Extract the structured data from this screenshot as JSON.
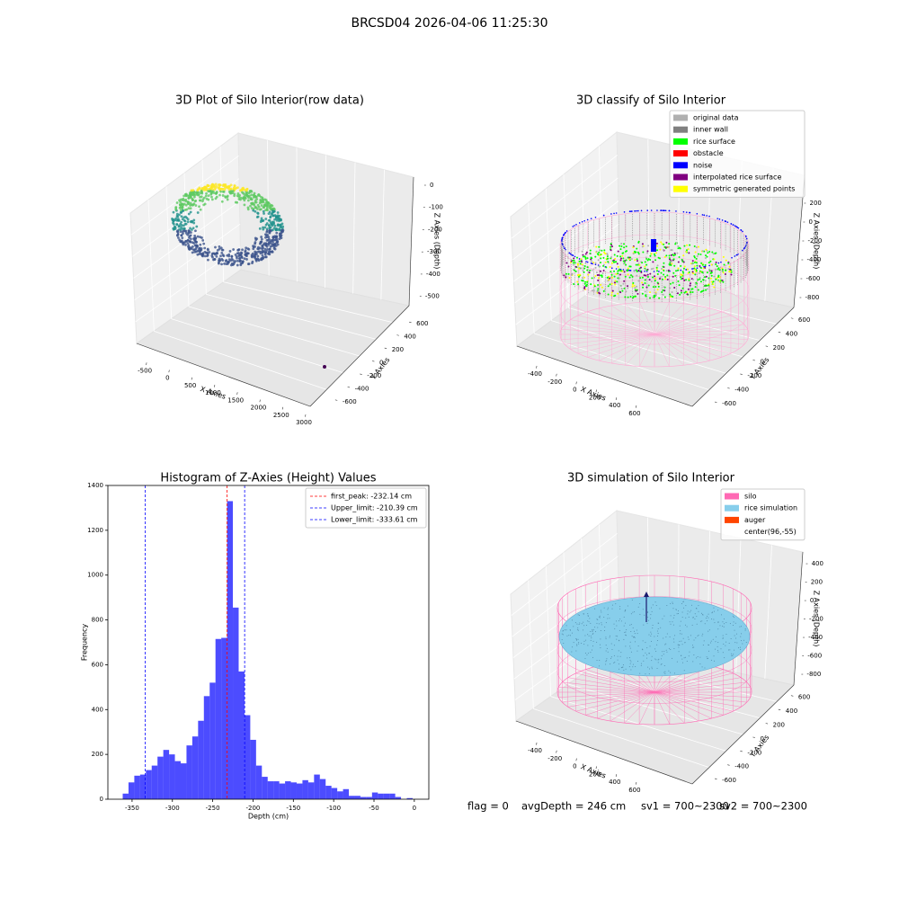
{
  "suptitle": "BRCSD04 2026-04-06 11:25:30",
  "chart_data": [
    {
      "type": "scatter3d",
      "title": "3D Plot of Silo Interior(row data)",
      "xlabel": "X Axies",
      "ylabel": "Y Axies",
      "zlabel": "Z Axies (Depth)",
      "xlim": [
        -700,
        3150
      ],
      "xticks": [
        -500,
        0,
        500,
        1000,
        1500,
        2000,
        2500,
        3000
      ],
      "ylim": [
        -700,
        700
      ],
      "yticks": [
        -600,
        -400,
        -200,
        0,
        200,
        400,
        600
      ],
      "zlim": [
        -550,
        30
      ],
      "zticks": [
        0,
        -100,
        -200,
        -300,
        -400,
        -500
      ]
    },
    {
      "type": "scatter3d",
      "title": "3D classify of Silo Interior",
      "xlabel": "X Axies",
      "ylabel": "Y Axies",
      "zlabel": "Z Axies (Depth)",
      "xlim": [
        -500,
        700
      ],
      "xticks": [
        -400,
        -200,
        0,
        200,
        400,
        600
      ],
      "ylim": [
        -700,
        700
      ],
      "yticks": [
        -600,
        -400,
        -200,
        0,
        200,
        400,
        600
      ],
      "zlim": [
        -900,
        300
      ],
      "zticks": [
        200,
        0,
        -200,
        -400,
        -600,
        -800
      ],
      "legend": [
        {
          "name": "original data",
          "color": "#b0b0b0"
        },
        {
          "name": "inner wall",
          "color": "#808080"
        },
        {
          "name": "rice surface",
          "color": "#00ff00"
        },
        {
          "name": "obstacle",
          "color": "#ff0000"
        },
        {
          "name": "noise",
          "color": "#0000ff"
        },
        {
          "name": "interpolated rice surface",
          "color": "#800080"
        },
        {
          "name": "symmetric generated points",
          "color": "#ffff00"
        }
      ]
    },
    {
      "type": "histogram",
      "title": "Histogram of Z-Axies (Height) Values",
      "xlabel": "Depth (cm)",
      "ylabel": "Frequency",
      "color": "#0000ff",
      "bins": [
        -361.6,
        -354.41,
        -347.22,
        -340.03,
        -332.84,
        -325.65,
        -318.46,
        -311.27,
        -304.08,
        -296.89,
        -289.7,
        -282.51,
        -275.32,
        -268.13,
        -260.94,
        -253.75,
        -246.56,
        -239.37,
        -232.18,
        -224.99,
        -217.8,
        -210.61,
        -203.42,
        -196.23,
        -189.04,
        -181.85,
        -174.66,
        -167.47,
        -160.28,
        -153.09,
        -145.9,
        -138.71,
        -131.52,
        -124.33,
        -117.14,
        -109.95,
        -102.76,
        -95.57,
        -88.38,
        -81.19,
        -74,
        -66.81,
        -59.62,
        -52.43,
        -45.24,
        -38.05,
        -30.86,
        -23.67,
        -16.48,
        -9.29,
        -2.1
      ],
      "values": [
        25,
        75,
        105,
        110,
        130,
        150,
        190,
        220,
        200,
        170,
        160,
        240,
        280,
        350,
        460,
        520,
        715,
        720,
        1330,
        855,
        570,
        375,
        265,
        150,
        100,
        80,
        80,
        70,
        80,
        75,
        70,
        85,
        75,
        110,
        90,
        60,
        50,
        35,
        45,
        15,
        15,
        10,
        10,
        30,
        25,
        25,
        25,
        10,
        0,
        5
      ],
      "xlim": [
        -380,
        18
      ],
      "xticks": [
        -350,
        -300,
        -250,
        -200,
        -150,
        -100,
        -50,
        0
      ],
      "ylim": [
        0,
        1400
      ],
      "yticks": [
        0,
        200,
        400,
        600,
        800,
        1000,
        1200,
        1400
      ],
      "vlines": [
        {
          "name": "first_peak: -232.14 cm",
          "value": -232.14,
          "color": "#ff0000"
        },
        {
          "name": "Upper_limit: -210.39 cm",
          "value": -210.39,
          "color": "#0000ff"
        },
        {
          "name": "Lower_limit: -333.61 cm",
          "value": -333.61,
          "color": "#0000ff"
        }
      ],
      "legend_position": "upper right"
    },
    {
      "type": "wireframe3d",
      "title": "3D simulation of Silo Interior",
      "xlabel": "X Axies",
      "ylabel": "Y Axies",
      "zlabel": "Z Axies (Depth)",
      "xlim": [
        -500,
        700
      ],
      "xticks": [
        -400,
        -200,
        0,
        200,
        400,
        600
      ],
      "ylim": [
        -700,
        700
      ],
      "yticks": [
        -600,
        -400,
        -200,
        0,
        200,
        400,
        600
      ],
      "zlim": [
        -900,
        500
      ],
      "zticks": [
        400,
        200,
        0,
        -200,
        -400,
        -600,
        -800
      ],
      "legend": [
        {
          "name": "silo",
          "color": "#ff69b4"
        },
        {
          "name": "rice simulation",
          "color": "#87ceeb"
        },
        {
          "name": "auger",
          "color": "#ff4500"
        },
        {
          "name": "center(96,-55)",
          "color": "#ffffff"
        }
      ]
    }
  ],
  "footer": [
    "flag = 0",
    "avgDepth = 246 cm",
    "sv1 = 700~2300",
    "sv2 = 700~2300"
  ]
}
